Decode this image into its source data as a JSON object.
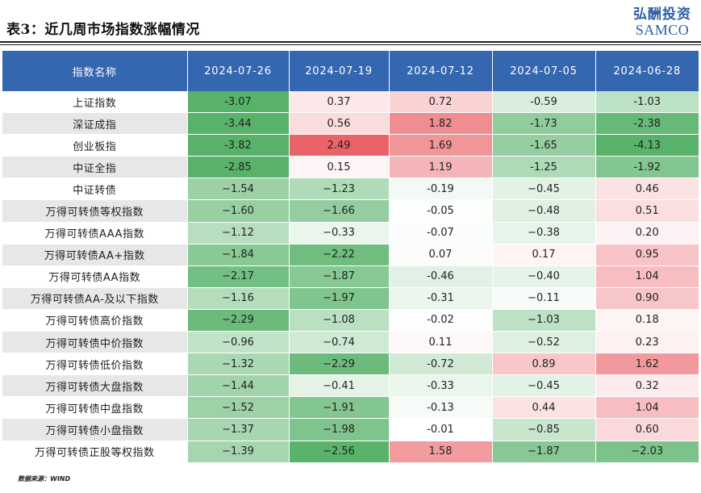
{
  "title": "表3：近几周市场指数涨幅情况",
  "logo": {
    "cn": "弘酬投资",
    "en": "SAMCO"
  },
  "colors": {
    "header_bg": "#3566b0",
    "positive": "#e8535a",
    "negative": "#4fae62"
  },
  "table": {
    "columns": [
      "指数名称",
      "2024-07-26",
      "2024-07-19",
      "2024-07-12",
      "2024-07-05",
      "2024-06-28"
    ],
    "rows": [
      {
        "name": "上证指数",
        "values": [
          "-3.07",
          "0.37",
          "0.72",
          "-0.59",
          "-1.03"
        ]
      },
      {
        "name": "深证成指",
        "values": [
          "-3.44",
          "0.56",
          "1.82",
          "-1.73",
          "-2.38"
        ]
      },
      {
        "name": "创业板指",
        "values": [
          "-3.82",
          "2.49",
          "1.69",
          "-1.65",
          "-4.13"
        ]
      },
      {
        "name": "中证全指",
        "values": [
          "-2.85",
          "0.15",
          "1.19",
          "-1.25",
          "-1.92"
        ]
      },
      {
        "name": "中证转债",
        "values": [
          "−1.54",
          "−1.23",
          "-0.19",
          "−0.45",
          "0.46"
        ]
      },
      {
        "name": "万得可转债等权指数",
        "values": [
          "−1.60",
          "−1.66",
          "-0.05",
          "−0.48",
          "0.51"
        ]
      },
      {
        "name": "万得可转债AAA指数",
        "values": [
          "−1.12",
          "−0.33",
          "-0.07",
          "−0.38",
          "0.20"
        ]
      },
      {
        "name": "万得可转债AA+指数",
        "values": [
          "−1.84",
          "−2.22",
          "0.07",
          "0.17",
          "0.95"
        ]
      },
      {
        "name": "万得可转债AA指数",
        "values": [
          "−2.17",
          "−1.87",
          "-0.46",
          "−0.40",
          "1.04"
        ]
      },
      {
        "name": "万得可转债AA-及以下指数",
        "values": [
          "−1.16",
          "−1.97",
          "-0.31",
          "−0.11",
          "0.90"
        ]
      },
      {
        "name": "万得可转债高价指数",
        "values": [
          "−2.29",
          "−1.08",
          "-0.02",
          "−1.03",
          "0.18"
        ]
      },
      {
        "name": "万得可转债中价指数",
        "values": [
          "−0.96",
          "−0.74",
          "0.11",
          "−0.52",
          "0.23"
        ]
      },
      {
        "name": "万得可转债低价指数",
        "values": [
          "−1.32",
          "−2.29",
          "-0.72",
          "0.89",
          "1.62"
        ]
      },
      {
        "name": "万得可转债大盘指数",
        "values": [
          "−1.44",
          "−0.41",
          "-0.33",
          "−0.45",
          "0.32"
        ]
      },
      {
        "name": "万得可转债中盘指数",
        "values": [
          "−1.52",
          "−1.91",
          "-0.13",
          "0.44",
          "1.04"
        ]
      },
      {
        "name": "万得可转债小盘指数",
        "values": [
          "−1.37",
          "−1.98",
          "-0.01",
          "−0.85",
          "0.60"
        ]
      },
      {
        "name": "万得可转债正股等权指数",
        "values": [
          "−1.39",
          "−2.56",
          "1.58",
          "−1.87",
          "−2.03"
        ]
      }
    ]
  },
  "source": "数据来源：WIND"
}
